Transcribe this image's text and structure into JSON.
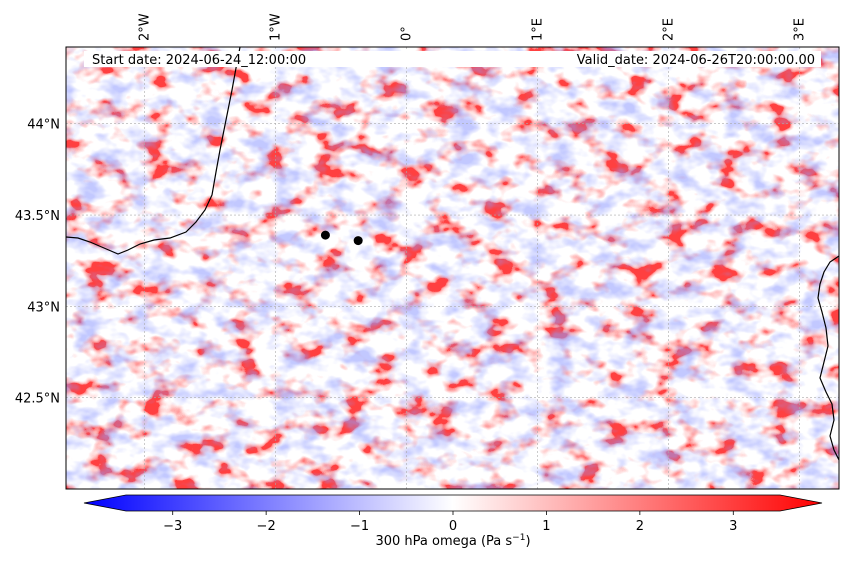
{
  "map": {
    "start_date": "Start date: 2024-06-24_12:00:00",
    "valid_date": "Valid_date: 2024-06-26T20:00:00.00",
    "lon_ticks": [
      {
        "value": -2,
        "label": "2°W"
      },
      {
        "value": -1,
        "label": "1°W"
      },
      {
        "value": 0,
        "label": "0°"
      },
      {
        "value": 1,
        "label": "1°E"
      },
      {
        "value": 2,
        "label": "2°E"
      },
      {
        "value": 3,
        "label": "3°E"
      }
    ],
    "lat_ticks": [
      {
        "value": 44.0,
        "label": "44°N"
      },
      {
        "value": 43.5,
        "label": "43.5°N"
      },
      {
        "value": 43.0,
        "label": "43°N"
      },
      {
        "value": 42.5,
        "label": "42.5°N"
      }
    ],
    "extent": {
      "lon_min": -2.6,
      "lon_max": 3.3,
      "lat_min": 42.0,
      "lat_max": 44.42
    },
    "markers": [
      {
        "name": "site-marker-1",
        "lon": -0.62,
        "lat": 43.39
      },
      {
        "name": "site-marker-2",
        "lon": -0.37,
        "lat": 43.36
      }
    ]
  },
  "colorbar": {
    "label": "300 hPa omega (Pa s",
    "label_exp": "−1",
    "label_close": ")",
    "range": [
      -3.5,
      3.5
    ],
    "ticks": [
      {
        "value": -3,
        "label": "−3"
      },
      {
        "value": -2,
        "label": "−2"
      },
      {
        "value": -1,
        "label": "−1"
      },
      {
        "value": 0,
        "label": "0"
      },
      {
        "value": 1,
        "label": "1"
      },
      {
        "value": 2,
        "label": "2"
      },
      {
        "value": 3,
        "label": "3"
      }
    ],
    "colors": {
      "low": "#0000ff",
      "mid": "#ffffff",
      "high": "#ff0000"
    }
  }
}
